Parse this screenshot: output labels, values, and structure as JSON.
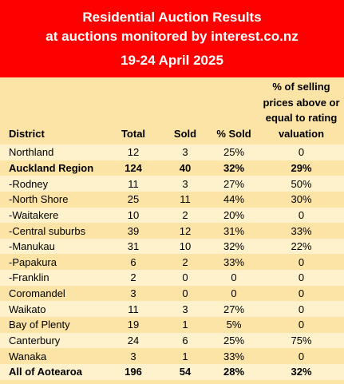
{
  "header": {
    "title_line1": "Residential Auction Results",
    "title_line2": "at auctions monitored by interest.co.nz",
    "date_range": "19-24 April 2025"
  },
  "colors": {
    "banner": "#ff0000",
    "banner_text": "#ffffff",
    "row_light": "#fef2cc",
    "row_dark": "#fce4a6"
  },
  "table": {
    "columns": {
      "district": "District",
      "total": "Total",
      "sold": "Sold",
      "pct_sold": "% Sold",
      "above_valuation": "% of selling prices above or equal to rating valuation"
    },
    "rows": [
      {
        "district": "Northland",
        "total": "12",
        "sold": "3",
        "pct_sold": "25%",
        "above_valuation": "0",
        "bold": false
      },
      {
        "district": "Auckland Region",
        "total": "124",
        "sold": "40",
        "pct_sold": "32%",
        "above_valuation": "29%",
        "bold": true
      },
      {
        "district": "-Rodney",
        "total": "11",
        "sold": "3",
        "pct_sold": "27%",
        "above_valuation": "50%",
        "bold": false
      },
      {
        "district": "-North Shore",
        "total": "25",
        "sold": "11",
        "pct_sold": "44%",
        "above_valuation": "30%",
        "bold": false
      },
      {
        "district": "-Waitakere",
        "total": "10",
        "sold": "2",
        "pct_sold": "20%",
        "above_valuation": "0",
        "bold": false
      },
      {
        "district": "-Central suburbs",
        "total": "39",
        "sold": "12",
        "pct_sold": "31%",
        "above_valuation": "33%",
        "bold": false
      },
      {
        "district": "-Manukau",
        "total": "31",
        "sold": "10",
        "pct_sold": "32%",
        "above_valuation": "22%",
        "bold": false
      },
      {
        "district": "-Papakura",
        "total": "6",
        "sold": "2",
        "pct_sold": "33%",
        "above_valuation": "0",
        "bold": false
      },
      {
        "district": "-Franklin",
        "total": "2",
        "sold": "0",
        "pct_sold": "0",
        "above_valuation": "0",
        "bold": false
      },
      {
        "district": "Coromandel",
        "total": "3",
        "sold": "0",
        "pct_sold": "0",
        "above_valuation": "0",
        "bold": false
      },
      {
        "district": "Waikato",
        "total": "11",
        "sold": "3",
        "pct_sold": "27%",
        "above_valuation": "0",
        "bold": false
      },
      {
        "district": "Bay of Plenty",
        "total": "19",
        "sold": "1",
        "pct_sold": "5%",
        "above_valuation": "0",
        "bold": false
      },
      {
        "district": "Canterbury",
        "total": "24",
        "sold": "6",
        "pct_sold": "25%",
        "above_valuation": "75%",
        "bold": false
      },
      {
        "district": "Wanaka",
        "total": "3",
        "sold": "1",
        "pct_sold": "33%",
        "above_valuation": "0",
        "bold": false
      },
      {
        "district": "All of Aotearoa",
        "total": "196",
        "sold": "54",
        "pct_sold": "28%",
        "above_valuation": "32%",
        "bold": true
      }
    ]
  }
}
